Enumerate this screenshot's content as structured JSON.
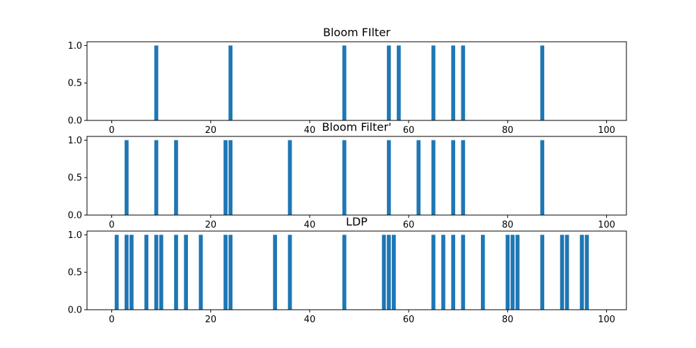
{
  "chart_data": [
    {
      "type": "bar",
      "title": "Bloom FIlter",
      "xlabel": "",
      "ylabel": "",
      "xlim": [
        -5,
        104
      ],
      "ylim": [
        0,
        1.05
      ],
      "xticks": [
        0,
        20,
        40,
        60,
        80,
        100
      ],
      "yticks": [
        0.0,
        0.5,
        1.0
      ],
      "xtick_labels": [
        "0",
        "20",
        "40",
        "60",
        "80",
        "100"
      ],
      "ytick_labels": [
        "0.0",
        "0.5",
        "1.0"
      ],
      "bar_width": 0.8,
      "color": "#1f77b4",
      "x": [
        9,
        24,
        47,
        56,
        58,
        65,
        69,
        71,
        87
      ],
      "values": [
        1,
        1,
        1,
        1,
        1,
        1,
        1,
        1,
        1
      ]
    },
    {
      "type": "bar",
      "title": "Bloom Filter'",
      "xlabel": "",
      "ylabel": "",
      "xlim": [
        -5,
        104
      ],
      "ylim": [
        0,
        1.05
      ],
      "xticks": [
        0,
        20,
        40,
        60,
        80,
        100
      ],
      "yticks": [
        0.0,
        0.5,
        1.0
      ],
      "xtick_labels": [
        "0",
        "20",
        "40",
        "60",
        "80",
        "100"
      ],
      "ytick_labels": [
        "0.0",
        "0.5",
        "1.0"
      ],
      "bar_width": 0.8,
      "color": "#1f77b4",
      "x": [
        3,
        9,
        13,
        23,
        24,
        36,
        47,
        56,
        62,
        65,
        69,
        71,
        87
      ],
      "values": [
        1,
        1,
        1,
        1,
        1,
        1,
        1,
        1,
        1,
        1,
        1,
        1,
        1
      ]
    },
    {
      "type": "bar",
      "title": "LDP",
      "xlabel": "",
      "ylabel": "",
      "xlim": [
        -5,
        104
      ],
      "ylim": [
        0,
        1.05
      ],
      "xticks": [
        0,
        20,
        40,
        60,
        80,
        100
      ],
      "yticks": [
        0.0,
        0.5,
        1.0
      ],
      "xtick_labels": [
        "0",
        "20",
        "40",
        "60",
        "80",
        "100"
      ],
      "ytick_labels": [
        "0.0",
        "0.5",
        "1.0"
      ],
      "bar_width": 0.8,
      "color": "#1f77b4",
      "x": [
        1,
        3,
        4,
        7,
        9,
        10,
        13,
        15,
        18,
        23,
        24,
        33,
        36,
        47,
        55,
        56,
        57,
        65,
        67,
        69,
        71,
        75,
        80,
        81,
        82,
        87,
        91,
        92,
        95,
        96
      ],
      "values": [
        1,
        1,
        1,
        1,
        1,
        1,
        1,
        1,
        1,
        1,
        1,
        1,
        1,
        1,
        1,
        1,
        1,
        1,
        1,
        1,
        1,
        1,
        1,
        1,
        1,
        1,
        1,
        1,
        1,
        1
      ]
    }
  ]
}
